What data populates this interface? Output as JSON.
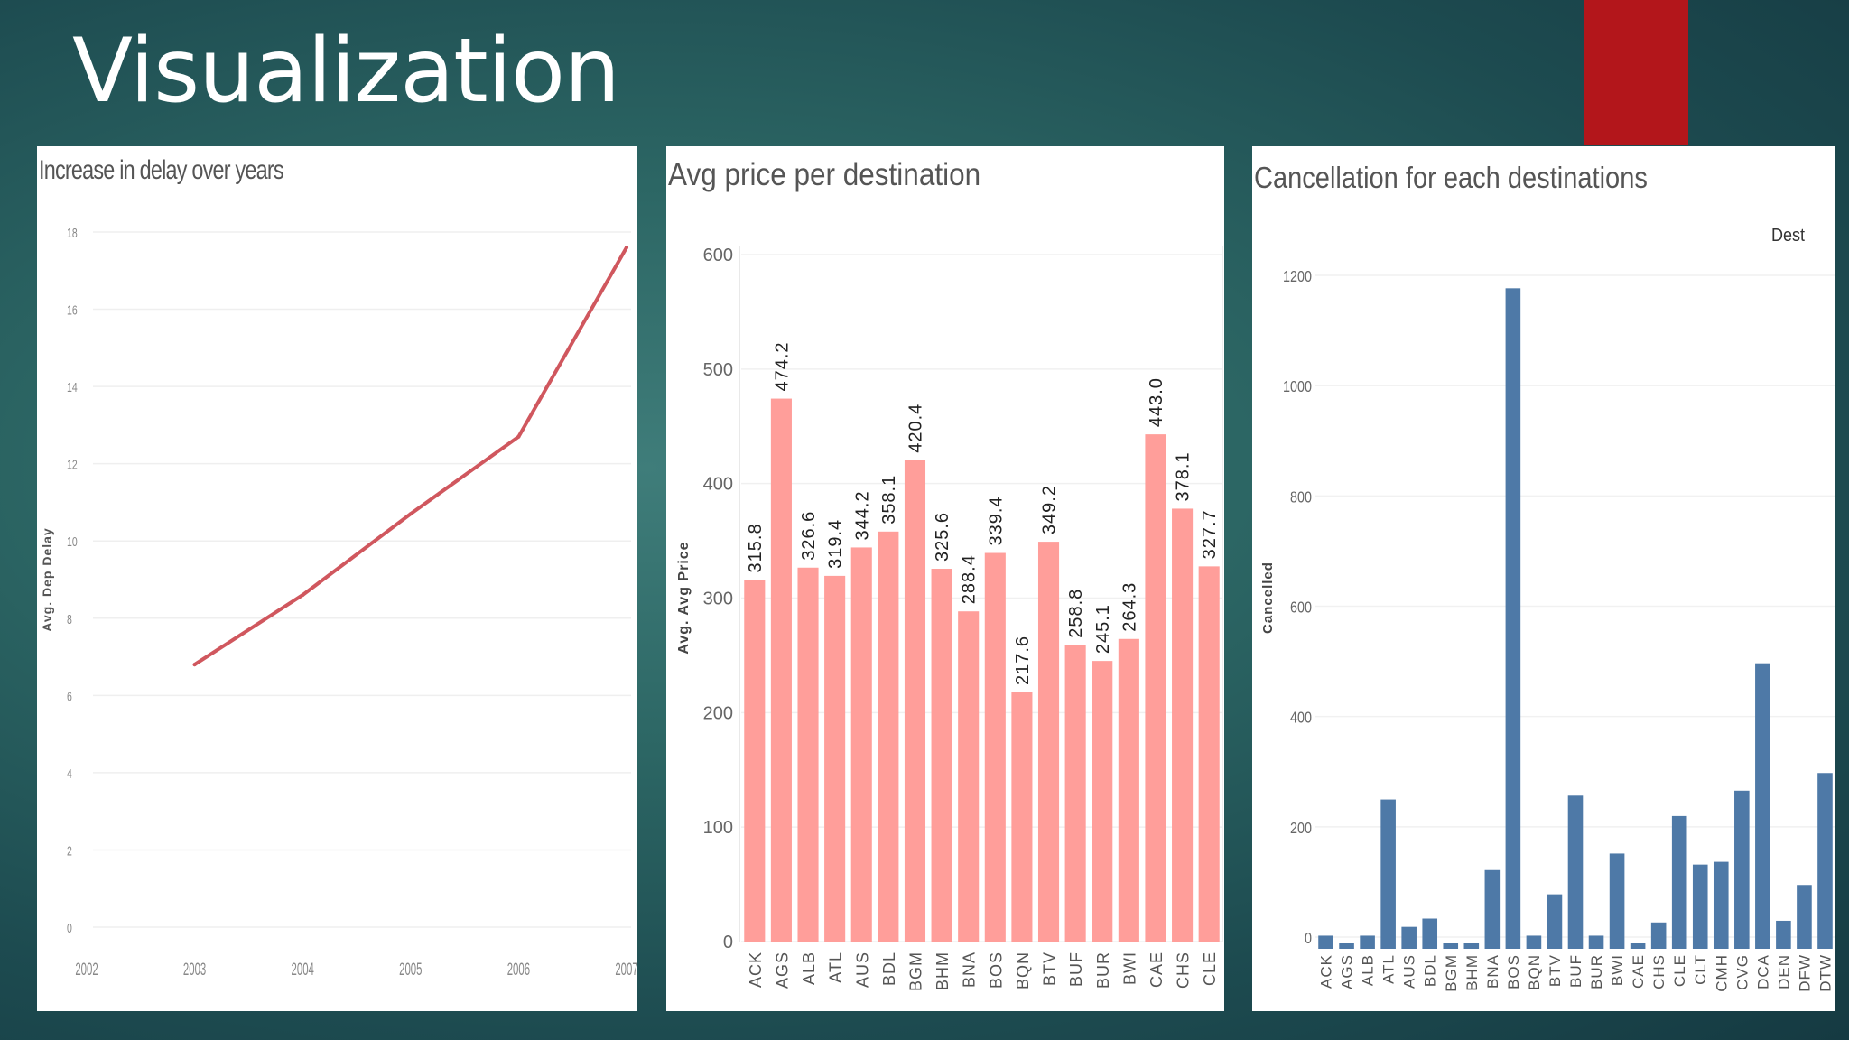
{
  "slide": {
    "title": "Visualization"
  },
  "colors": {
    "accent": "#b3161b",
    "line": "#d0575e",
    "pink_bar": "#ff9e9a",
    "blue_bar": "#4e79a7"
  },
  "chart_data": [
    {
      "type": "line",
      "title": "Increase in delay over years",
      "xlabel": "",
      "ylabel": "Avg. Dep Delay",
      "x": [
        2003,
        2004,
        2005,
        2006,
        2007
      ],
      "x_ticks": [
        "2002",
        "2003",
        "2004",
        "2005",
        "2006",
        "2007"
      ],
      "y_ticks": [
        "0",
        "2",
        "4",
        "6",
        "8",
        "10",
        "12",
        "14",
        "16",
        "18"
      ],
      "values": [
        6.8,
        8.6,
        10.7,
        12.7,
        17.6
      ],
      "xlim": [
        2002,
        2007
      ],
      "ylim": [
        0,
        18
      ],
      "grid": true
    },
    {
      "type": "bar",
      "title": "Avg price per destination",
      "xlabel": "",
      "ylabel": "Avg. Avg Price",
      "categories": [
        "ACK",
        "AGS",
        "ALB",
        "ATL",
        "AUS",
        "BDL",
        "BGM",
        "BHM",
        "BNA",
        "BOS",
        "BQN",
        "BTV",
        "BUF",
        "BUR",
        "BWI",
        "CAE",
        "CHS",
        "CLE"
      ],
      "values": [
        315.8,
        474.2,
        326.6,
        319.4,
        344.2,
        358.1,
        420.4,
        325.6,
        288.4,
        339.4,
        217.6,
        349.2,
        258.8,
        245.1,
        264.3,
        443.0,
        378.1,
        327.7
      ],
      "labels": [
        "315.8",
        "474.2",
        "326.6",
        "319.4",
        "344.2",
        "358.1",
        "420.4",
        "325.6",
        "288.4",
        "339.4",
        "217.6",
        "349.2",
        "258.8",
        "245.1",
        "264.3",
        "443.0",
        "378.1",
        "327.7"
      ],
      "y_ticks": [
        "0",
        "100",
        "200",
        "300",
        "400",
        "500",
        "600"
      ],
      "ylim": [
        0,
        600
      ],
      "grid": true
    },
    {
      "type": "bar",
      "title": "Cancellation for each destinations",
      "legend_title": "Dest",
      "xlabel": "",
      "ylabel": "Cancelled",
      "categories": [
        "ACK",
        "AGS",
        "ALB",
        "ATL",
        "AUS",
        "BDL",
        "BGM",
        "BHM",
        "BNA",
        "BOS",
        "BQN",
        "BTV",
        "BUF",
        "BUR",
        "BWI",
        "CAE",
        "CHS",
        "CLE",
        "CLT",
        "CMH",
        "CVG",
        "DCA",
        "DEN",
        "DFW",
        "DTW"
      ],
      "values": [
        14,
        0,
        14,
        261,
        30,
        45,
        0,
        0,
        133,
        1188,
        14,
        89,
        268,
        14,
        163,
        0,
        38,
        231,
        143,
        148,
        277,
        508,
        41,
        106,
        309
      ],
      "y_ticks": [
        "0",
        "200",
        "400",
        "600",
        "800",
        "1000",
        "1200"
      ],
      "ylim": [
        0,
        1200
      ],
      "grid": true
    }
  ]
}
